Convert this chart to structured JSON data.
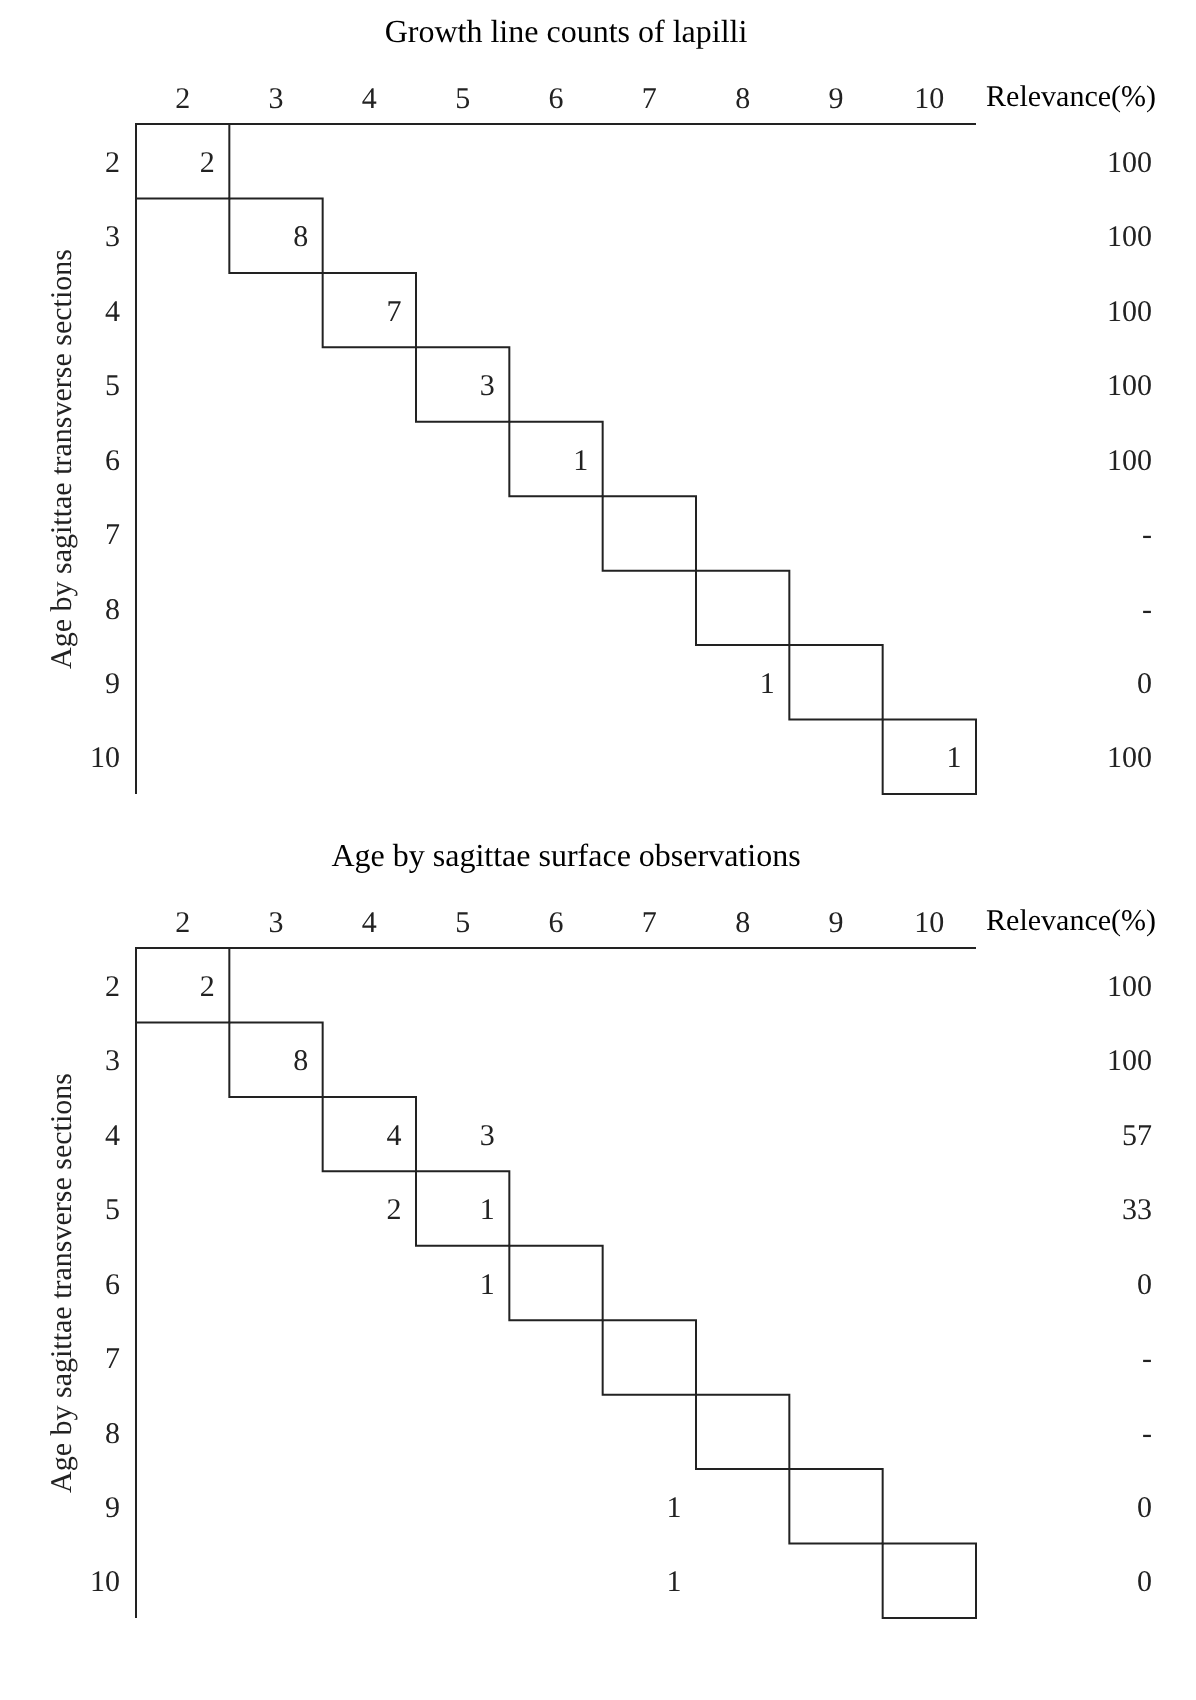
{
  "chart_data": [
    {
      "type": "heatmap",
      "data_labels": true,
      "title": "Growth line counts of lapilli",
      "ylabel": "Age by sagittae transverse sections",
      "y2label": "Relevance(%)",
      "categories": [
        "2",
        "3",
        "4",
        "5",
        "6",
        "7",
        "8",
        "9",
        "10"
      ],
      "y_categories": [
        "2",
        "3",
        "4",
        "5",
        "6",
        "7",
        "8",
        "9",
        "10"
      ],
      "y2_categories": [
        "100",
        "100",
        "100",
        "100",
        "100",
        "-",
        "-",
        "0",
        "100"
      ],
      "cells": [
        [
          2,
          null,
          null,
          null,
          null,
          null,
          null,
          null,
          null
        ],
        [
          null,
          8,
          null,
          null,
          null,
          null,
          null,
          null,
          null
        ],
        [
          null,
          null,
          7,
          null,
          null,
          null,
          null,
          null,
          null
        ],
        [
          null,
          null,
          null,
          3,
          null,
          null,
          null,
          null,
          null
        ],
        [
          null,
          null,
          null,
          null,
          1,
          null,
          null,
          null,
          null
        ],
        [
          null,
          null,
          null,
          null,
          null,
          null,
          null,
          null,
          null
        ],
        [
          null,
          null,
          null,
          null,
          null,
          null,
          null,
          null,
          null
        ],
        [
          null,
          null,
          null,
          null,
          null,
          null,
          1,
          null,
          null
        ],
        [
          null,
          null,
          null,
          null,
          null,
          null,
          null,
          null,
          1
        ]
      ]
    },
    {
      "type": "heatmap",
      "data_labels": true,
      "title": "Age by sagittae surface observations",
      "ylabel": "Age by sagittae transverse sections",
      "y2label": "Relevance(%)",
      "categories": [
        "2",
        "3",
        "4",
        "5",
        "6",
        "7",
        "8",
        "9",
        "10"
      ],
      "y_categories": [
        "2",
        "3",
        "4",
        "5",
        "6",
        "7",
        "8",
        "9",
        "10"
      ],
      "y2_categories": [
        "100",
        "100",
        "57",
        "33",
        "0",
        "-",
        "-",
        "0",
        "0"
      ],
      "cells": [
        [
          2,
          null,
          null,
          null,
          null,
          null,
          null,
          null,
          null
        ],
        [
          null,
          8,
          null,
          null,
          null,
          null,
          null,
          null,
          null
        ],
        [
          null,
          null,
          4,
          3,
          null,
          null,
          null,
          null,
          null
        ],
        [
          null,
          null,
          2,
          1,
          null,
          null,
          null,
          null,
          null
        ],
        [
          null,
          null,
          null,
          1,
          null,
          null,
          null,
          null,
          null
        ],
        [
          null,
          null,
          null,
          null,
          null,
          null,
          null,
          null,
          null
        ],
        [
          null,
          null,
          null,
          null,
          null,
          null,
          null,
          null,
          null
        ],
        [
          null,
          null,
          null,
          null,
          null,
          1,
          null,
          null,
          null
        ],
        [
          null,
          null,
          null,
          null,
          null,
          1,
          null,
          null,
          null
        ]
      ]
    }
  ]
}
